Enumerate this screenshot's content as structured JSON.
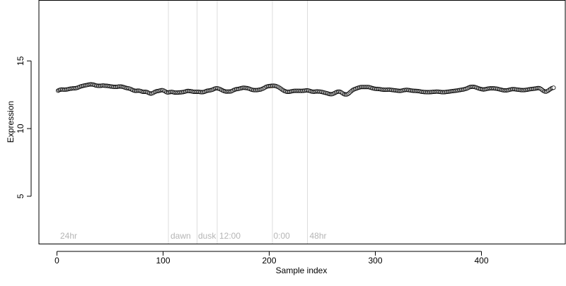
{
  "chart_data": {
    "type": "scatter",
    "title": "",
    "xlabel": "Sample index",
    "ylabel": "Expression",
    "xlim": [
      -17,
      479
    ],
    "ylim": [
      1.5,
      19.5
    ],
    "x_ticks": [
      0,
      100,
      200,
      300,
      400
    ],
    "y_ticks": [
      5,
      10,
      15
    ],
    "grid": false,
    "legend": "none",
    "vertical_markers": [
      {
        "x": 105,
        "label": "24hr"
      },
      {
        "x": 132,
        "label": "dawn"
      },
      {
        "x": 151,
        "label": "dusk"
      },
      {
        "x": 203,
        "label": "12:00"
      },
      {
        "x": 236,
        "label": "0:00"
      },
      {
        "x": 0,
        "label": "48hr"
      }
    ],
    "marker_label_positions": [
      {
        "x": 3,
        "label": "24hr"
      },
      {
        "x": 107,
        "label": "dawn"
      },
      {
        "x": 133,
        "label": "dusk"
      },
      {
        "x": 153,
        "label": "12:00"
      },
      {
        "x": 204,
        "label": "0:00"
      },
      {
        "x": 238,
        "label": "48hr"
      }
    ],
    "marker_lines_x": [
      105,
      132,
      151,
      203,
      236
    ],
    "series": [
      {
        "name": "",
        "x_start": 1,
        "x_step": 1,
        "y": [
          12.8,
          12.84,
          12.87,
          12.89,
          12.89,
          12.88,
          12.88,
          12.88,
          12.89,
          12.9,
          12.92,
          12.94,
          12.95,
          12.96,
          12.97,
          12.97,
          12.98,
          12.99,
          13.01,
          13.04,
          13.07,
          13.1,
          13.13,
          13.15,
          13.17,
          13.19,
          13.2,
          13.21,
          13.23,
          13.25,
          13.26,
          13.27,
          13.26,
          13.25,
          13.23,
          13.2,
          13.18,
          13.17,
          13.16,
          13.16,
          13.16,
          13.17,
          13.18,
          13.18,
          13.17,
          13.16,
          13.16,
          13.15,
          13.14,
          13.12,
          13.11,
          13.1,
          13.09,
          13.08,
          13.08,
          13.08,
          13.09,
          13.11,
          13.11,
          13.11,
          13.1,
          13.08,
          13.06,
          13.03,
          13.01,
          12.99,
          12.98,
          12.96,
          12.94,
          12.9,
          12.86,
          12.83,
          12.8,
          12.79,
          12.79,
          12.8,
          12.8,
          12.79,
          12.77,
          12.74,
          12.72,
          12.72,
          12.72,
          12.71,
          12.69,
          12.65,
          12.62,
          12.59,
          12.59,
          12.61,
          12.65,
          12.7,
          12.73,
          12.76,
          12.77,
          12.79,
          12.81,
          12.83,
          12.84,
          12.83,
          12.79,
          12.75,
          12.7,
          12.67,
          12.67,
          12.69,
          12.7,
          12.71,
          12.7,
          12.68,
          12.66,
          12.66,
          12.66,
          12.66,
          12.67,
          12.68,
          12.68,
          12.69,
          12.7,
          12.72,
          12.74,
          12.76,
          12.78,
          12.78,
          12.77,
          12.76,
          12.75,
          12.73,
          12.72,
          12.72,
          12.72,
          12.72,
          12.72,
          12.71,
          12.7,
          12.69,
          12.69,
          12.7,
          12.72,
          12.75,
          12.78,
          12.8,
          12.81,
          12.82,
          12.84,
          12.86,
          12.89,
          12.93,
          12.96,
          12.98,
          12.98,
          12.96,
          12.94,
          12.9,
          12.86,
          12.82,
          12.78,
          12.76,
          12.74,
          12.73,
          12.74,
          12.74,
          12.74,
          12.75,
          12.78,
          12.82,
          12.86,
          12.89,
          12.91,
          12.92,
          12.93,
          12.95,
          12.97,
          12.99,
          13.01,
          13.02,
          13.01,
          13.0,
          12.99,
          12.97,
          12.95,
          12.92,
          12.89,
          12.87,
          12.85,
          12.84,
          12.84,
          12.84,
          12.85,
          12.86,
          12.88,
          12.89,
          12.92,
          12.95,
          12.99,
          13.03,
          13.08,
          13.11,
          13.13,
          13.14,
          13.15,
          13.16,
          13.16,
          13.17,
          13.16,
          13.15,
          13.12,
          13.09,
          13.05,
          13.0,
          12.95,
          12.89,
          12.84,
          12.79,
          12.76,
          12.73,
          12.72,
          12.72,
          12.72,
          12.74,
          12.75,
          12.77,
          12.78,
          12.79,
          12.79,
          12.79,
          12.79,
          12.79,
          12.79,
          12.78,
          12.79,
          12.79,
          12.8,
          12.81,
          12.82,
          12.82,
          12.81,
          12.79,
          12.76,
          12.74,
          12.73,
          12.72,
          12.73,
          12.74,
          12.75,
          12.74,
          12.74,
          12.73,
          12.72,
          12.7,
          12.68,
          12.66,
          12.64,
          12.62,
          12.6,
          12.57,
          12.55,
          12.54,
          12.54,
          12.56,
          12.6,
          12.64,
          12.68,
          12.71,
          12.73,
          12.73,
          12.71,
          12.67,
          12.62,
          12.57,
          12.53,
          12.52,
          12.52,
          12.55,
          12.6,
          12.67,
          12.74,
          12.81,
          12.86,
          12.9,
          12.93,
          12.96,
          12.99,
          13.02,
          13.04,
          13.06,
          13.07,
          13.07,
          13.07,
          13.07,
          13.07,
          13.07,
          13.07,
          13.06,
          13.04,
          13.02,
          12.99,
          12.97,
          12.95,
          12.94,
          12.93,
          12.93,
          12.92,
          12.92,
          12.9,
          12.89,
          12.88,
          12.87,
          12.87,
          12.87,
          12.87,
          12.88,
          12.88,
          12.87,
          12.86,
          12.85,
          12.84,
          12.83,
          12.82,
          12.81,
          12.8,
          12.79,
          12.78,
          12.79,
          12.8,
          12.82,
          12.84,
          12.85,
          12.86,
          12.86,
          12.85,
          12.84,
          12.82,
          12.81,
          12.8,
          12.79,
          12.79,
          12.78,
          12.78,
          12.77,
          12.76,
          12.75,
          12.73,
          12.72,
          12.71,
          12.7,
          12.7,
          12.69,
          12.69,
          12.69,
          12.69,
          12.7,
          12.7,
          12.71,
          12.72,
          12.72,
          12.73,
          12.73,
          12.73,
          12.72,
          12.71,
          12.7,
          12.69,
          12.69,
          12.69,
          12.7,
          12.71,
          12.72,
          12.73,
          12.74,
          12.75,
          12.76,
          12.77,
          12.78,
          12.79,
          12.8,
          12.81,
          12.82,
          12.84,
          12.85,
          12.87,
          12.88,
          12.89,
          12.91,
          12.93,
          12.96,
          12.99,
          13.03,
          13.06,
          13.08,
          13.09,
          13.09,
          13.08,
          13.06,
          13.04,
          13.01,
          12.98,
          12.95,
          12.93,
          12.91,
          12.9,
          12.89,
          12.9,
          12.91,
          12.93,
          12.95,
          12.96,
          12.97,
          12.97,
          12.97,
          12.97,
          12.97,
          12.96,
          12.95,
          12.94,
          12.92,
          12.9,
          12.88,
          12.86,
          12.84,
          12.83,
          12.82,
          12.82,
          12.83,
          12.84,
          12.86,
          12.88,
          12.9,
          12.91,
          12.91,
          12.91,
          12.9,
          12.89,
          12.88,
          12.87,
          12.86,
          12.85,
          12.84,
          12.84,
          12.84,
          12.85,
          12.86,
          12.87,
          12.89,
          12.9,
          12.91,
          12.92,
          12.93,
          12.94,
          12.95,
          12.96,
          12.98,
          12.99,
          12.99,
          12.97,
          12.93,
          12.87,
          12.81,
          12.76,
          12.73,
          12.73,
          12.76,
          12.81,
          12.87,
          12.92,
          12.97,
          13.0,
          13.02
        ],
        "band": [
          0,
          0,
          0,
          0,
          0,
          0,
          0,
          0,
          0,
          0,
          0,
          0,
          0,
          0,
          0,
          0,
          0,
          0,
          0,
          0,
          0,
          0,
          0,
          0,
          0,
          0,
          0,
          0,
          0,
          0,
          0,
          0,
          0,
          0,
          0,
          0,
          0,
          0,
          0,
          0,
          0,
          0,
          0,
          0,
          0,
          0,
          0,
          0,
          0,
          0,
          0,
          0,
          0,
          0,
          0,
          0,
          0,
          0,
          0,
          0,
          0,
          0,
          0,
          0,
          0,
          0,
          0,
          0,
          0,
          0,
          0,
          0,
          0,
          0,
          0,
          0,
          0,
          0,
          0,
          0,
          0,
          0,
          0,
          0,
          0,
          0,
          0,
          0,
          0,
          0,
          0,
          0,
          0,
          0,
          0,
          0,
          0,
          0,
          0,
          0,
          0,
          0,
          0,
          0,
          0,
          0,
          0,
          0,
          0,
          0,
          0,
          0,
          0,
          0,
          0,
          0,
          0,
          0,
          0,
          0,
          0,
          0,
          0,
          0,
          0,
          0,
          0,
          0,
          0,
          0,
          0,
          0,
          0,
          0,
          0,
          0,
          0,
          0,
          0,
          0,
          0,
          0,
          0,
          0,
          0,
          0,
          0,
          0,
          0,
          0,
          0,
          0,
          0,
          0,
          0,
          0,
          0,
          0,
          0,
          0,
          0,
          0,
          0,
          0,
          0,
          0,
          0,
          0,
          0,
          0,
          0,
          0,
          0,
          0,
          0,
          0,
          0,
          0,
          0,
          0,
          0,
          0,
          0,
          0,
          0,
          0,
          0,
          0,
          0,
          0,
          0,
          0,
          0,
          0,
          0,
          0,
          0,
          0,
          0,
          0,
          0,
          0,
          0,
          0,
          0,
          0,
          0,
          0,
          0,
          0,
          0,
          0,
          0,
          0,
          0,
          0,
          0,
          0,
          0,
          0,
          0,
          0,
          0,
          0,
          0,
          0,
          0,
          0,
          0,
          0,
          0,
          0,
          0,
          0,
          0,
          0,
          0,
          0,
          0,
          0,
          0,
          0,
          0,
          0,
          0,
          0,
          0,
          0,
          0,
          0,
          0,
          0,
          0,
          0,
          0,
          0,
          0,
          0,
          0,
          0,
          0,
          0,
          0,
          0,
          0,
          0,
          0,
          0,
          0,
          0,
          0,
          0,
          0,
          0,
          0,
          0,
          0,
          0,
          0,
          0,
          0,
          0,
          0,
          0,
          0,
          0,
          0,
          0,
          0,
          0,
          0,
          0,
          0,
          0,
          0,
          0,
          0,
          0,
          0,
          0,
          0,
          0,
          0,
          0,
          0,
          0,
          0,
          0,
          0,
          0,
          0,
          0,
          0,
          0,
          0,
          0,
          0,
          0,
          0,
          0,
          0,
          0,
          0,
          0,
          0,
          0,
          0,
          0,
          0,
          0,
          0,
          0,
          0,
          0,
          0,
          0,
          0,
          0,
          0,
          0,
          0,
          0,
          0,
          0,
          0,
          0,
          0,
          0,
          0,
          0,
          0,
          0,
          0,
          0,
          0,
          0,
          0,
          0,
          0,
          0,
          0,
          0,
          0,
          0,
          0,
          0,
          0,
          0,
          0,
          0,
          0,
          0,
          0,
          0,
          0,
          0,
          0,
          0,
          0,
          0,
          0,
          0,
          0,
          0,
          0,
          0,
          0,
          0,
          0,
          0,
          0,
          0,
          0,
          0,
          0,
          0,
          0,
          0,
          0,
          0,
          0,
          0,
          0,
          0,
          0,
          0,
          0,
          0,
          0,
          0,
          0,
          0,
          0,
          0,
          0,
          0,
          0,
          0,
          0,
          0,
          0,
          0,
          0,
          0,
          0,
          0,
          0,
          0,
          0,
          0,
          0,
          0,
          0,
          0,
          0,
          0,
          0,
          0,
          0,
          0,
          0,
          0,
          0,
          0,
          0,
          0,
          0,
          0,
          0,
          0,
          0,
          0,
          0,
          0,
          0,
          0,
          0,
          0,
          0,
          0,
          0,
          0,
          0,
          0,
          0,
          0,
          0,
          0,
          0
        ]
      }
    ],
    "deviation_fill_colors": {
      "above": "#f0b060",
      "below": "#9ab0e0"
    },
    "marker_line_color": "#dddddd",
    "marker_label_color": "#b5b5b5",
    "point_fill": "#ffffff",
    "point_stroke": "#000000"
  }
}
